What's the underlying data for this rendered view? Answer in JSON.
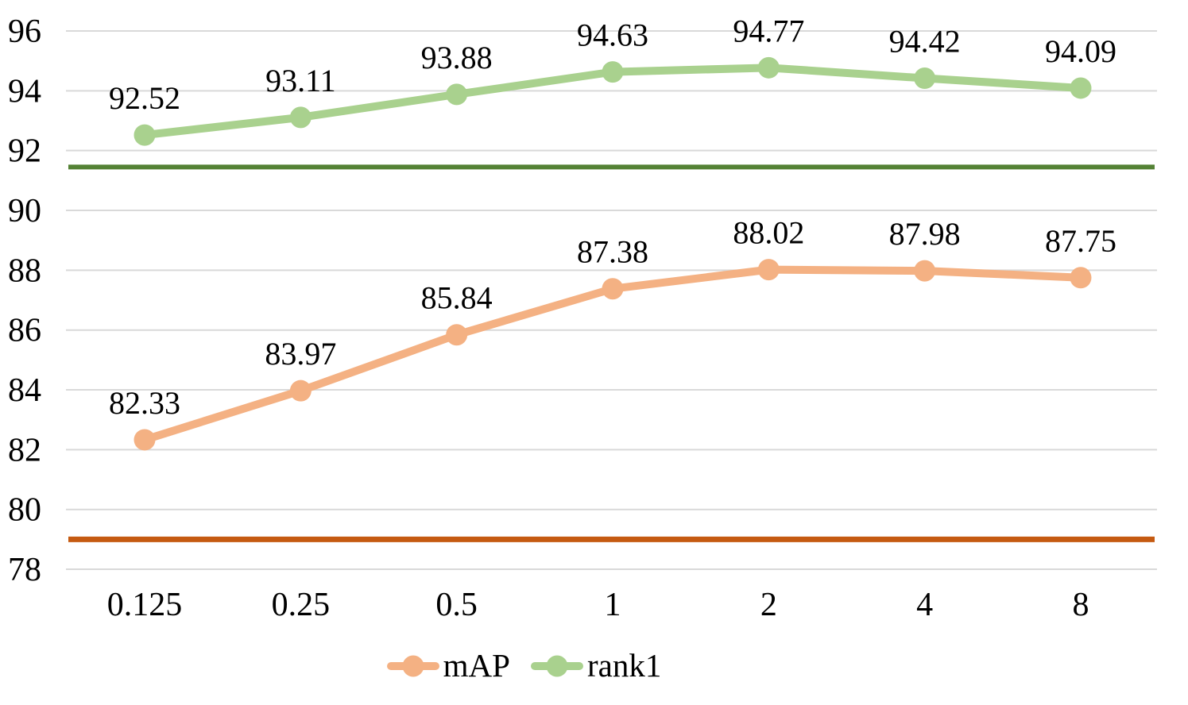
{
  "chart_data": {
    "type": "line",
    "title": "",
    "xlabel": "",
    "ylabel": "",
    "categories": [
      "0.125",
      "0.25",
      "0.5",
      "1",
      "2",
      "4",
      "8"
    ],
    "series": [
      {
        "name": "mAP",
        "color": "#F4B183",
        "values": [
          82.33,
          83.97,
          85.84,
          87.38,
          88.02,
          87.98,
          87.75
        ],
        "data_labels": [
          "82.33",
          "83.97",
          "85.84",
          "87.38",
          "88.02",
          "87.98",
          "87.75"
        ]
      },
      {
        "name": "rank1",
        "color": "#A9D18E",
        "values": [
          92.52,
          93.11,
          93.88,
          94.63,
          94.77,
          94.42,
          94.09
        ],
        "data_labels": [
          "92.52",
          "93.11",
          "93.88",
          "94.63",
          "94.77",
          "94.42",
          "94.09"
        ]
      }
    ],
    "reference_lines": [
      {
        "for_series": "rank1",
        "value": 91.45,
        "color": "#548235"
      },
      {
        "for_series": "mAP",
        "value": 79.0,
        "color": "#C55A11"
      }
    ],
    "y_axis": {
      "min": 78,
      "max": 96,
      "step": 2,
      "tick_labels": [
        "78",
        "80",
        "82",
        "84",
        "86",
        "88",
        "90",
        "92",
        "94",
        "96"
      ]
    },
    "grid": "horizontal",
    "gridline_color": "#D9D9D9",
    "text_color": "#000000",
    "legend_position": "bottom-center"
  }
}
